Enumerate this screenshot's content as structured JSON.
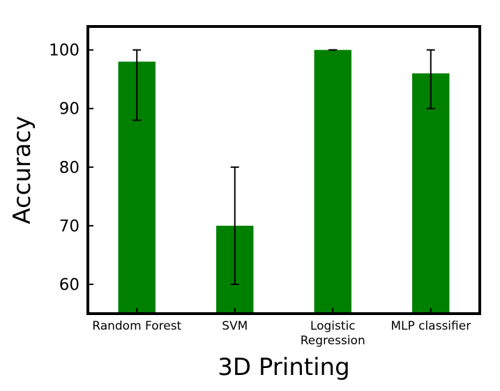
{
  "chart_data": {
    "type": "bar",
    "categories": [
      [
        "Random Forest"
      ],
      [
        "SVM"
      ],
      [
        "Logistic",
        "Regression"
      ],
      [
        "MLP classifier"
      ]
    ],
    "values": [
      98,
      70,
      100,
      96
    ],
    "error_low": [
      88,
      60,
      100,
      90
    ],
    "error_high": [
      100,
      80,
      100,
      100
    ],
    "xlabel": "3D Printing",
    "ylabel": "Accuracy",
    "ylim": [
      55,
      104
    ],
    "yticks": [
      60,
      70,
      80,
      90,
      100
    ],
    "grid": false,
    "bar_color": "#008000",
    "error_color": "#000000"
  }
}
